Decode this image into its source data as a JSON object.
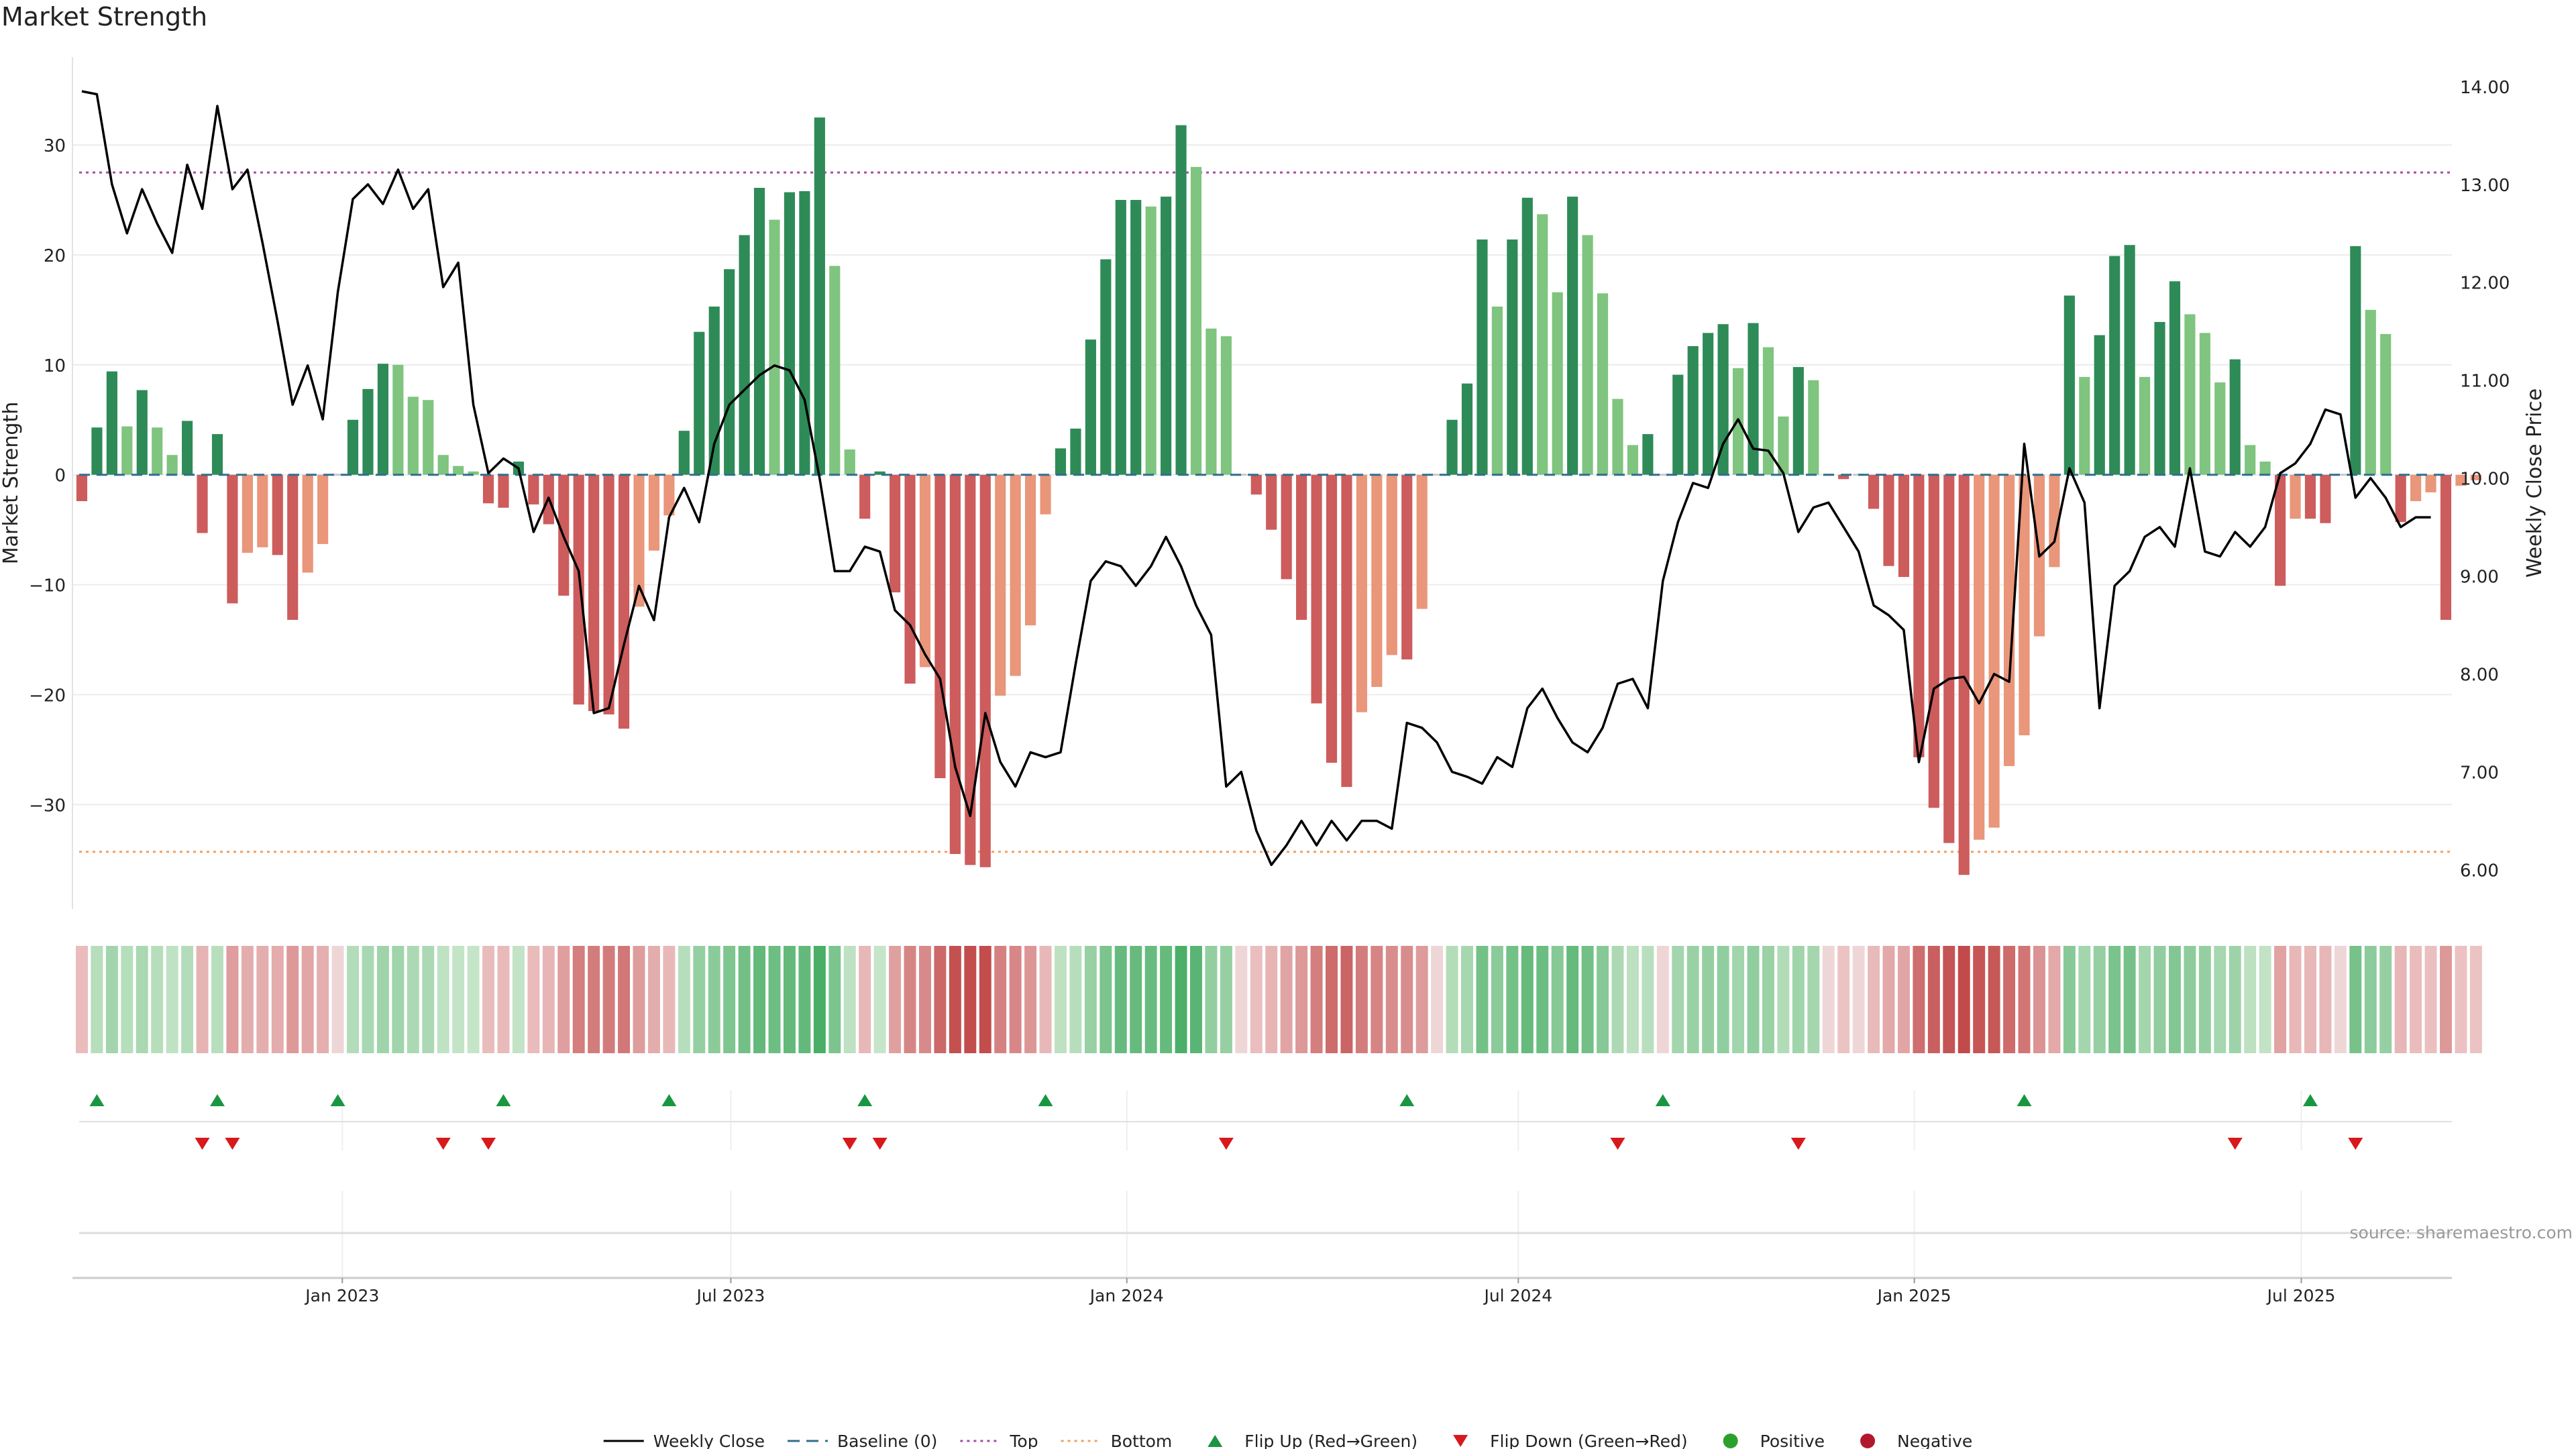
{
  "chart_data": {
    "type": "bar",
    "title": "Market Strength",
    "ylabel": "Market Strength",
    "y2label": "Weekly Close Price",
    "source": "source: sharemaestro.com",
    "ylim": [
      -39.5,
      38
    ],
    "y2lim": [
      5.6,
      14.3
    ],
    "yticks": [
      30,
      20,
      10,
      0,
      -10,
      -20,
      -30
    ],
    "ytick_labels": [
      "30",
      "20",
      "10",
      "0",
      "−10",
      "−20",
      "−30"
    ],
    "y2ticks": [
      14,
      13,
      12,
      11,
      10,
      9,
      8,
      7,
      6
    ],
    "y2tick_labels": [
      "14.00",
      "13.00",
      "12.00",
      "11.00",
      "10.00",
      "9.00",
      "8.00",
      "7.00",
      "6.00"
    ],
    "x_start_week": 0,
    "x_end_week": 157,
    "xticks": [
      {
        "week": 17.3,
        "label": "Jan 2023"
      },
      {
        "week": 43.1,
        "label": "Jul 2023"
      },
      {
        "week": 69.4,
        "label": "Jan 2024"
      },
      {
        "week": 95.4,
        "label": "Jul 2024"
      },
      {
        "week": 121.7,
        "label": "Jan 2025"
      },
      {
        "week": 147.4,
        "label": "Jul 2025"
      }
    ],
    "top_line": 27.5,
    "bottom_line": -34.3,
    "colors": {
      "strong_positive": "#2e8b57",
      "weak_positive": "#7fc47f",
      "strong_negative": "#cd5c5c",
      "weak_negative": "#e9967a",
      "price_line": "#000000",
      "baseline": "#2f6f8f",
      "top": "#a64ca6",
      "bottom": "#f0a060",
      "flip_up": "#1a9641",
      "flip_down": "#d7191c",
      "positive_dot": "#2ca02c",
      "negative_dot": "#b2182b"
    },
    "strength_values": [
      -2.4,
      4.3,
      9.4,
      4.4,
      7.7,
      4.3,
      1.8,
      4.9,
      -5.3,
      3.7,
      -11.7,
      -7.1,
      -6.6,
      -7.3,
      -13.2,
      -8.9,
      -6.3,
      0,
      5,
      7.8,
      10.1,
      10,
      7.1,
      6.8,
      1.8,
      0.8,
      0.3,
      -2.6,
      -3,
      1.2,
      -2.7,
      -4.5,
      -11,
      -20.9,
      -21.5,
      -21.8,
      -23.1,
      -12,
      -6.9,
      -3.7,
      4,
      13,
      15.3,
      18.7,
      21.8,
      26.1,
      23.2,
      25.7,
      25.8,
      32.5,
      19,
      2.3,
      -4,
      0.3,
      -10.7,
      -19,
      -17.5,
      -27.6,
      -34.5,
      -35.5,
      -35.7,
      -20.1,
      -18.3,
      -13.7,
      -3.6,
      2.4,
      4.2,
      12.3,
      19.6,
      25,
      25,
      24.4,
      25.3,
      31.8,
      28,
      13.3,
      12.6,
      0,
      -1.8,
      -5,
      -9.5,
      -13.2,
      -20.8,
      -26.2,
      -28.4,
      -21.6,
      -19.3,
      -16.4,
      -16.8,
      -12.2,
      0,
      5,
      8.3,
      21.4,
      15.3,
      21.4,
      25.2,
      23.7,
      16.6,
      25.3,
      21.8,
      16.5,
      6.9,
      2.7,
      3.7,
      0,
      9.1,
      11.7,
      12.9,
      13.7,
      9.7,
      13.8,
      11.6,
      5.3,
      9.8,
      8.6,
      0,
      -0.4,
      0,
      -3.1,
      -8.3,
      -9.3,
      -25.7,
      -30.3,
      -33.5,
      -36.4,
      -33.2,
      -32.1,
      -26.5,
      -23.7,
      -14.7,
      -8.4,
      16.3,
      8.9,
      12.7,
      19.9,
      20.9,
      8.9,
      13.9,
      17.6,
      14.6,
      12.9,
      8.4,
      10.5,
      2.7,
      1.2,
      -10.1,
      -4,
      -4,
      -4.4,
      0,
      20.8,
      15,
      12.8,
      -4.3,
      -2.4,
      -1.6,
      -13.2,
      -1,
      -0.5
    ],
    "close_values": [
      13.95,
      13.92,
      13.0,
      12.5,
      12.95,
      12.6,
      12.3,
      13.2,
      12.75,
      13.8,
      12.95,
      13.15,
      12.4,
      11.6,
      10.75,
      11.15,
      10.6,
      11.9,
      12.85,
      13.0,
      12.8,
      13.15,
      12.75,
      12.95,
      11.95,
      12.2,
      10.75,
      10.05,
      10.2,
      10.1,
      9.45,
      9.8,
      9.4,
      9.05,
      7.6,
      7.65,
      8.3,
      8.9,
      8.55,
      9.6,
      9.9,
      9.55,
      10.35,
      10.75,
      10.9,
      11.05,
      11.15,
      11.1,
      10.8,
      10.0,
      9.05,
      9.05,
      9.3,
      9.25,
      8.65,
      8.5,
      8.2,
      7.95,
      7.05,
      6.55,
      7.6,
      7.1,
      6.85,
      7.2,
      7.15,
      7.2,
      8.1,
      8.95,
      9.15,
      9.1,
      8.9,
      9.1,
      9.4,
      9.1,
      8.7,
      8.4,
      6.85,
      7.0,
      6.4,
      6.05,
      6.25,
      6.5,
      6.25,
      6.5,
      6.3,
      6.5,
      6.5,
      6.42,
      7.5,
      7.45,
      7.3,
      7.0,
      6.95,
      6.88,
      7.15,
      7.05,
      7.65,
      7.85,
      7.55,
      7.3,
      7.2,
      7.45,
      7.9,
      7.95,
      7.65,
      8.95,
      9.55,
      9.95,
      9.9,
      10.35,
      10.6,
      10.3,
      10.28,
      10.05,
      9.45,
      9.7,
      9.75,
      9.5,
      9.25,
      8.7,
      8.6,
      8.45,
      7.1,
      7.85,
      7.95,
      7.97,
      7.7,
      8.0,
      7.92,
      10.35,
      9.2,
      9.35,
      10.1,
      9.75,
      7.65,
      8.9,
      9.05,
      9.4,
      9.5,
      9.3,
      10.1,
      9.25,
      9.2,
      9.45,
      9.3,
      9.5,
      10.05,
      10.15,
      10.35,
      10.7,
      10.65,
      9.8,
      10.0,
      9.8,
      9.5,
      9.6,
      9.6
    ],
    "flip_up_weeks": [
      1,
      9,
      17,
      28,
      39,
      52,
      64,
      88,
      105,
      129,
      148
    ],
    "flip_down_weeks": [
      8,
      10,
      24,
      27,
      51,
      53,
      76,
      102,
      114,
      143,
      151
    ],
    "legend": [
      {
        "key": "close",
        "label": "Weekly Close"
      },
      {
        "key": "baseline",
        "label": "Baseline (0)"
      },
      {
        "key": "top",
        "label": "Top"
      },
      {
        "key": "bottom",
        "label": "Bottom"
      },
      {
        "key": "flip_up",
        "label": "Flip Up (Red→Green)"
      },
      {
        "key": "flip_down",
        "label": "Flip Down (Green→Red)"
      },
      {
        "key": "positive",
        "label": "Positive"
      },
      {
        "key": "negative",
        "label": "Negative"
      }
    ]
  }
}
